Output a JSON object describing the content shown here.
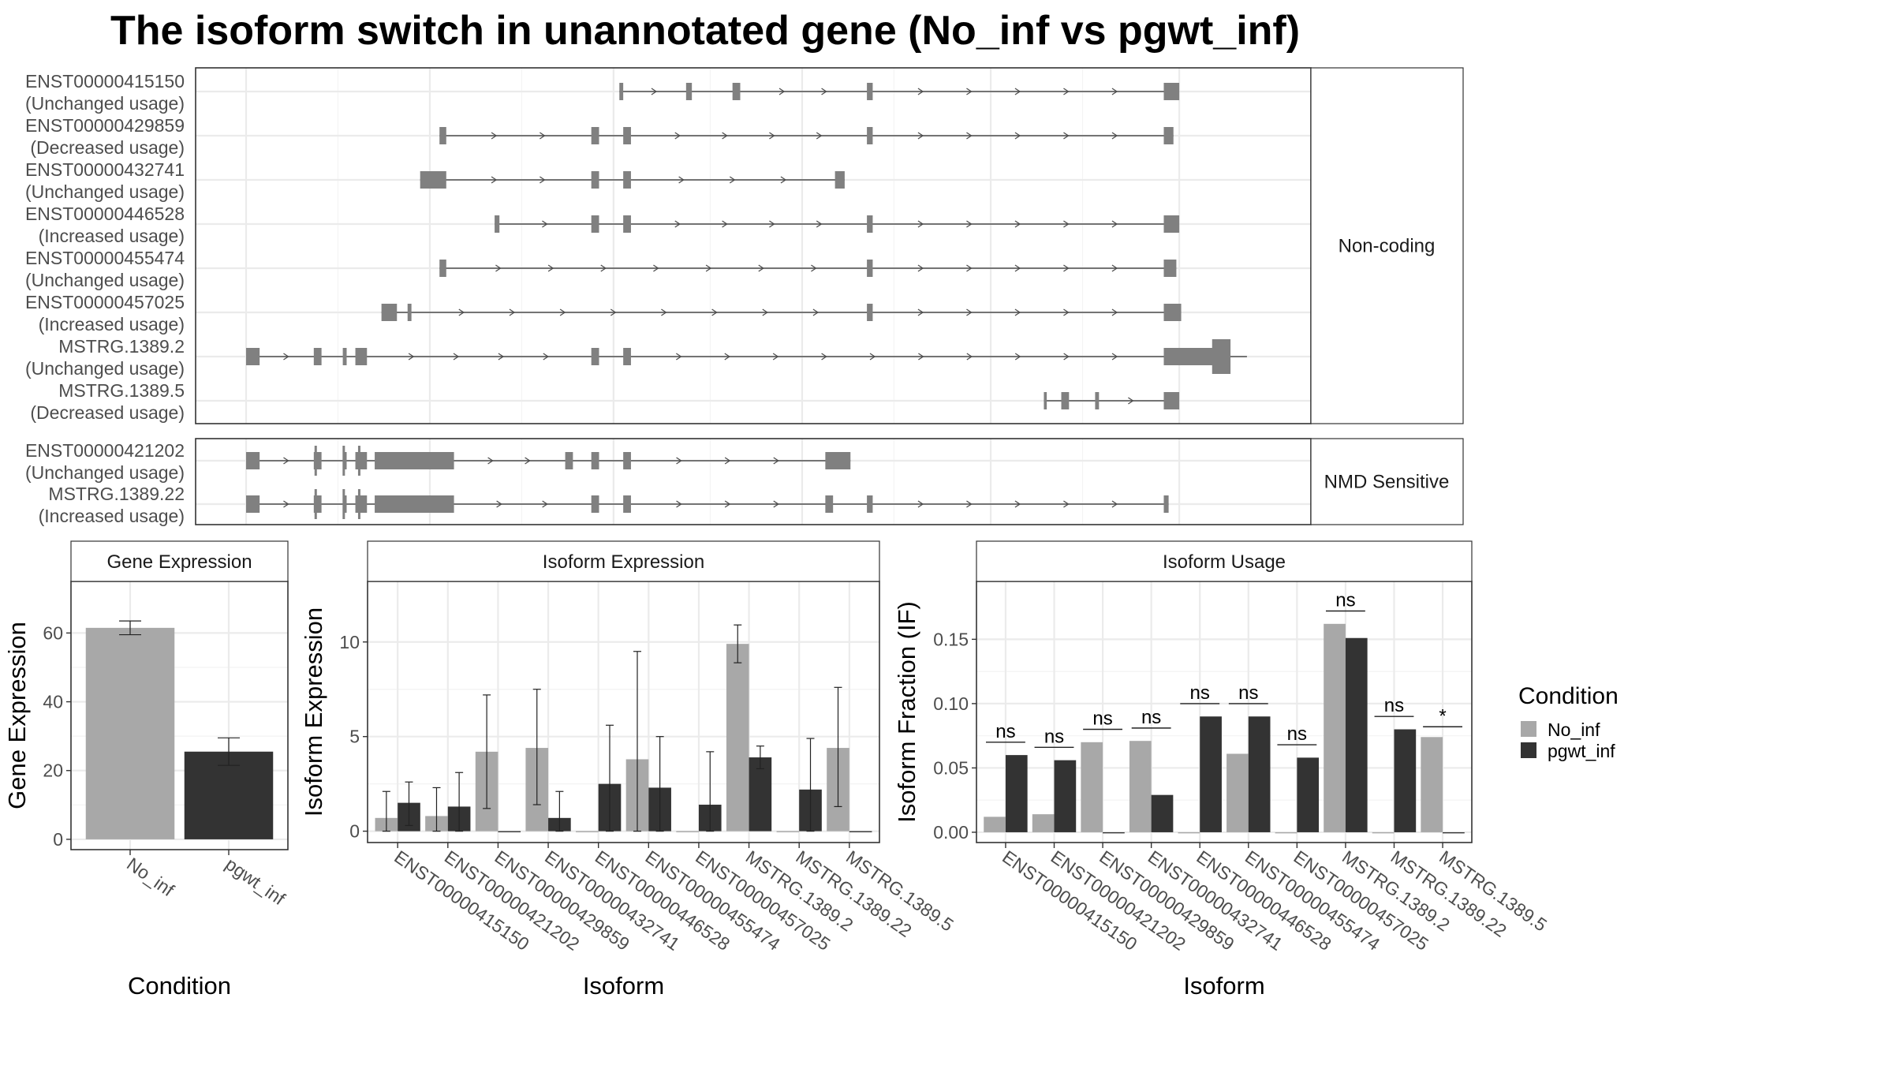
{
  "title": "The isoform switch in unannotated gene (No_inf vs pgwt_inf)",
  "colors": {
    "No_inf": "#a8a8a8",
    "pgwt_inf": "#333333",
    "exon": "#808080",
    "intron": "#4d4d4d"
  },
  "chart_data": [
    {
      "type": "diagram",
      "panel": "transcript-structure",
      "facets": [
        {
          "label": "Non-coding",
          "transcripts": [
            {
              "id": "ENST00000415150",
              "usage": "(Unchanged usage)",
              "exons": [
                [
                  0.386,
                  0.39
                ],
                [
                  0.455,
                  0.461
                ],
                [
                  0.503,
                  0.511
                ],
                [
                  0.642,
                  0.648
                ],
                [
                  0.949,
                  0.965
                ]
              ]
            },
            {
              "id": "ENST00000429859",
              "usage": "(Decreased usage)",
              "exons": [
                [
                  0.2,
                  0.207
                ],
                [
                  0.357,
                  0.365
                ],
                [
                  0.39,
                  0.398
                ],
                [
                  0.642,
                  0.648
                ],
                [
                  0.949,
                  0.959
                ]
              ]
            },
            {
              "id": "ENST00000432741",
              "usage": "(Unchanged usage)",
              "exons": [
                [
                  0.18,
                  0.207
                ],
                [
                  0.357,
                  0.365
                ],
                [
                  0.39,
                  0.398
                ],
                [
                  0.609,
                  0.619
                ]
              ]
            },
            {
              "id": "ENST00000446528",
              "usage": "(Increased usage)",
              "exons": [
                [
                  0.257,
                  0.262
                ],
                [
                  0.357,
                  0.365
                ],
                [
                  0.39,
                  0.398
                ],
                [
                  0.642,
                  0.648
                ],
                [
                  0.949,
                  0.965
                ]
              ]
            },
            {
              "id": "ENST00000455474",
              "usage": "(Unchanged usage)",
              "exons": [
                [
                  0.2,
                  0.207
                ],
                [
                  0.642,
                  0.648
                ],
                [
                  0.949,
                  0.962
                ]
              ]
            },
            {
              "id": "ENST00000457025",
              "usage": "(Increased usage)",
              "exons": [
                [
                  0.14,
                  0.156
                ],
                [
                  0.167,
                  0.171
                ],
                [
                  0.642,
                  0.648
                ],
                [
                  0.949,
                  0.967
                ]
              ]
            },
            {
              "id": "MSTRG.1389.2",
              "usage": "(Unchanged usage)",
              "exons": [
                [
                  0.0,
                  0.014
                ],
                [
                  0.07,
                  0.078
                ],
                [
                  0.1,
                  0.104
                ],
                [
                  0.113,
                  0.125
                ],
                [
                  0.357,
                  0.365
                ],
                [
                  0.39,
                  0.398
                ],
                [
                  0.949,
                  1.0
                ]
              ],
              "thick": [
                [
                  0.999,
                  1.018
                ]
              ],
              "ext": 1.035
            },
            {
              "id": "MSTRG.1389.5",
              "usage": "(Decreased usage)",
              "exons": [
                [
                  0.825,
                  0.828
                ],
                [
                  0.843,
                  0.851
                ],
                [
                  0.878,
                  0.882
                ],
                [
                  0.949,
                  0.965
                ]
              ]
            }
          ]
        },
        {
          "label": "NMD Sensitive",
          "transcripts": [
            {
              "id": "ENST00000421202",
              "usage": "(Unchanged usage)",
              "exons": [
                [
                  0.0,
                  0.014
                ],
                [
                  0.07,
                  0.078
                ],
                [
                  0.1,
                  0.104
                ],
                [
                  0.113,
                  0.125
                ],
                [
                  0.133,
                  0.215
                ],
                [
                  0.33,
                  0.338
                ],
                [
                  0.357,
                  0.365
                ],
                [
                  0.39,
                  0.398
                ],
                [
                  0.599,
                  0.625
                ]
              ],
              "lines": [
                0.072,
                0.101,
                0.117
              ]
            },
            {
              "id": "MSTRG.1389.22",
              "usage": "(Increased usage)",
              "exons": [
                [
                  0.0,
                  0.014
                ],
                [
                  0.07,
                  0.078
                ],
                [
                  0.1,
                  0.104
                ],
                [
                  0.113,
                  0.125
                ],
                [
                  0.133,
                  0.215
                ],
                [
                  0.357,
                  0.365
                ],
                [
                  0.39,
                  0.398
                ],
                [
                  0.599,
                  0.607
                ],
                [
                  0.642,
                  0.648
                ],
                [
                  0.949,
                  0.954
                ]
              ],
              "lines": [
                0.072,
                0.101,
                0.117
              ]
            }
          ]
        }
      ]
    },
    {
      "type": "bar",
      "panel": "gene-expression",
      "strip": "Gene Expression",
      "xlabel": "Condition",
      "ylabel": "Gene Expression",
      "ylim": [
        -3,
        75
      ],
      "yticks": [
        0,
        20,
        40,
        60
      ],
      "categories": [
        "No_inf",
        "pgwt_inf"
      ],
      "values": [
        61.5,
        25.5
      ],
      "errors": [
        [
          59.5,
          63.5
        ],
        [
          21.5,
          29.5
        ]
      ]
    },
    {
      "type": "bar",
      "panel": "isoform-expression",
      "strip": "Isoform Expression",
      "xlabel": "Isoform",
      "ylabel": "Isoform Expression",
      "ylim": [
        -0.6,
        13.2
      ],
      "yticks": [
        0,
        5,
        10
      ],
      "categories": [
        "ENST00000415150",
        "ENST00000421202",
        "ENST00000429859",
        "ENST00000432741",
        "ENST00000446528",
        "ENST00000455474",
        "ENST00000457025",
        "MSTRG.1389.2",
        "MSTRG.1389.22",
        "MSTRG.1389.5"
      ],
      "series": [
        {
          "name": "No_inf",
          "values": [
            0.7,
            0.8,
            4.2,
            4.4,
            0.0,
            3.8,
            0.0,
            9.9,
            0.0,
            4.4
          ],
          "errors": [
            [
              0,
              2.1
            ],
            [
              0,
              2.3
            ],
            [
              1.2,
              7.2
            ],
            [
              1.4,
              7.5
            ],
            null,
            [
              0,
              9.5
            ],
            null,
            [
              8.9,
              10.9
            ],
            null,
            [
              1.3,
              7.6
            ]
          ]
        },
        {
          "name": "pgwt_inf",
          "values": [
            1.5,
            1.3,
            0.0,
            0.7,
            2.5,
            2.3,
            1.4,
            3.9,
            2.2,
            0.0
          ],
          "errors": [
            [
              0.3,
              2.6
            ],
            [
              0,
              3.1
            ],
            null,
            [
              0,
              2.1
            ],
            [
              0,
              5.6
            ],
            [
              0,
              5.0
            ],
            [
              0,
              4.2
            ],
            [
              3.3,
              4.5
            ],
            [
              0,
              4.9
            ],
            null
          ]
        }
      ]
    },
    {
      "type": "bar",
      "panel": "isoform-usage",
      "strip": "Isoform Usage",
      "xlabel": "Isoform",
      "ylabel": "Isoform Fraction (IF)",
      "ylim": [
        -0.008,
        0.195
      ],
      "yticks": [
        0.0,
        0.05,
        0.1,
        0.15
      ],
      "ytick_labels": [
        "0.00",
        "0.05",
        "0.10",
        "0.15"
      ],
      "categories": [
        "ENST00000415150",
        "ENST00000421202",
        "ENST00000429859",
        "ENST00000432741",
        "ENST00000446528",
        "ENST00000455474",
        "ENST00000457025",
        "MSTRG.1389.2",
        "MSTRG.1389.22",
        "MSTRG.1389.5"
      ],
      "series": [
        {
          "name": "No_inf",
          "values": [
            0.012,
            0.014,
            0.07,
            0.071,
            0.0,
            0.061,
            0.0,
            0.162,
            0.0,
            0.074
          ]
        },
        {
          "name": "pgwt_inf",
          "values": [
            0.06,
            0.056,
            0.0,
            0.029,
            0.09,
            0.09,
            0.058,
            0.151,
            0.08,
            0.0
          ]
        }
      ],
      "significance": [
        {
          "label": "ns",
          "y": 0.07
        },
        {
          "label": "ns",
          "y": 0.066
        },
        {
          "label": "ns",
          "y": 0.08
        },
        {
          "label": "ns",
          "y": 0.081
        },
        {
          "label": "ns",
          "y": 0.1
        },
        {
          "label": "ns",
          "y": 0.1
        },
        {
          "label": "ns",
          "y": 0.068
        },
        {
          "label": "ns",
          "y": 0.172
        },
        {
          "label": "ns",
          "y": 0.09
        },
        {
          "label": "*",
          "y": 0.082
        }
      ]
    }
  ],
  "legend": {
    "title": "Condition",
    "position": "right",
    "entries": [
      {
        "name": "No_inf"
      },
      {
        "name": "pgwt_inf"
      }
    ]
  }
}
